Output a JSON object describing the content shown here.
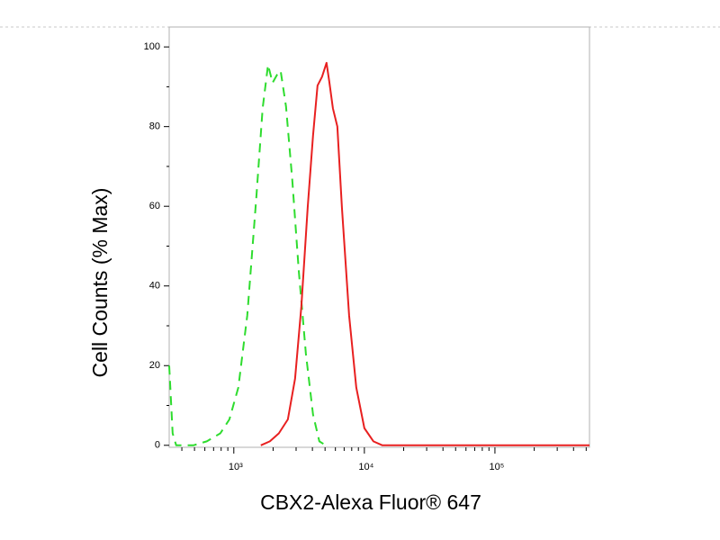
{
  "chart_data": {
    "type": "line",
    "xlabel": "CBX2-Alexa Fluor® 647",
    "ylabel": "Cell Counts (% Max)",
    "log_x": true,
    "xlim": [
      320,
      530000
    ],
    "ylim": [
      -0.5,
      105
    ],
    "xticks": [
      {
        "value": 1000,
        "label": "10³"
      },
      {
        "value": 10000,
        "label": "10⁴"
      },
      {
        "value": 100000,
        "label": "10⁵"
      }
    ],
    "xminorticks": [
      400,
      500,
      600,
      700,
      800,
      900,
      2000,
      3000,
      4000,
      5000,
      6000,
      7000,
      8000,
      9000,
      20000,
      30000,
      40000,
      50000,
      60000,
      70000,
      80000,
      90000,
      200000,
      300000,
      400000,
      500000
    ],
    "yticks": [
      0,
      20,
      40,
      60,
      80,
      100
    ],
    "yminorticks": [
      10,
      30,
      50,
      70,
      90
    ],
    "series": [
      {
        "color": "#2edc2e",
        "dashed": true,
        "x": [
          320,
          340,
          362,
          490,
          621,
          788,
          925,
          1083,
          1268,
          1486,
          1663,
          1829,
          1981,
          2143,
          2284,
          2512,
          2806,
          3141,
          3565,
          4045,
          4520,
          5050
        ],
        "values": [
          20,
          3,
          0,
          0,
          1,
          3,
          6.5,
          14.5,
          32.6,
          62,
          84.6,
          95.5,
          91,
          93,
          94,
          85,
          66.5,
          44,
          23,
          7.7,
          1,
          0
        ]
      },
      {
        "color": "#e82020",
        "dashed": false,
        "x": [
          1610,
          1888,
          2213,
          2594,
          2945,
          3290,
          3680,
          4045,
          4378,
          4740,
          5130,
          5380,
          5740,
          6210,
          6730,
          7640,
          8670,
          10000,
          11720,
          13740,
          530000
        ],
        "values": [
          0,
          1,
          3,
          6.5,
          16.7,
          34.8,
          59.7,
          77.8,
          90.3,
          92.5,
          96,
          91.4,
          84.6,
          80,
          59.7,
          32.6,
          14.5,
          4.3,
          1,
          0,
          0
        ]
      }
    ]
  }
}
